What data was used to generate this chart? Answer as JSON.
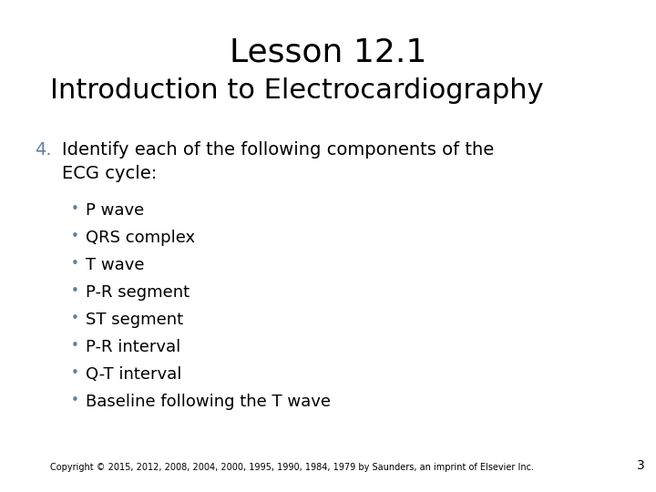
{
  "title": "Lesson 12.1",
  "subtitle": "Introduction to Electrocardiography",
  "item_number": "4.",
  "item_text": "Identify each of the following components of the\nECG cycle:",
  "bullets": [
    "P wave",
    "QRS complex",
    "T wave",
    "P-R segment",
    "ST segment",
    "P-R interval",
    "Q-T interval",
    "Baseline following the T wave"
  ],
  "copyright": "Copyright © 2015, 2012, 2008, 2004, 2000, 1995, 1990, 1984, 1979 by Saunders, an imprint of Elsevier Inc.",
  "page_number": "3",
  "bg_color": "#ffffff",
  "text_color": "#000000",
  "number_color": "#6080a0",
  "bullet_color": "#6080a0",
  "title_fontsize": 26,
  "subtitle_fontsize": 22,
  "body_fontsize": 14,
  "bullet_fontsize": 13,
  "copyright_fontsize": 7
}
